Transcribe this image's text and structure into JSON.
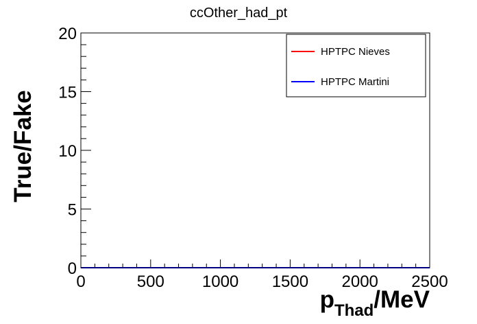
{
  "chart_data": {
    "type": "line",
    "title": "ccOther_had_pt",
    "ylabel": "True/Fake",
    "xlabel_main": "p",
    "xlabel_sub": "Thad",
    "xlabel_unit": "/MeV",
    "xlim": [
      0,
      2500
    ],
    "ylim": [
      0,
      20
    ],
    "x_major_ticks": [
      0,
      500,
      1000,
      1500,
      2000,
      2500
    ],
    "x_tick_labels": [
      "0",
      "500",
      "1000",
      "1500",
      "2000",
      "2500"
    ],
    "y_major_ticks": [
      0,
      5,
      10,
      15,
      20
    ],
    "y_tick_labels": [
      "0",
      "5",
      "10",
      "15",
      "20"
    ],
    "grid": false,
    "legend_position": "top-right",
    "series": [
      {
        "name": "HPTPC Nieves",
        "color": "#ff0000",
        "x": [
          0,
          2500
        ],
        "y": [
          0,
          0
        ]
      },
      {
        "name": "HPTPC Martini",
        "color": "#0000ff",
        "x": [
          0,
          2500
        ],
        "y": [
          0,
          0
        ]
      }
    ]
  }
}
